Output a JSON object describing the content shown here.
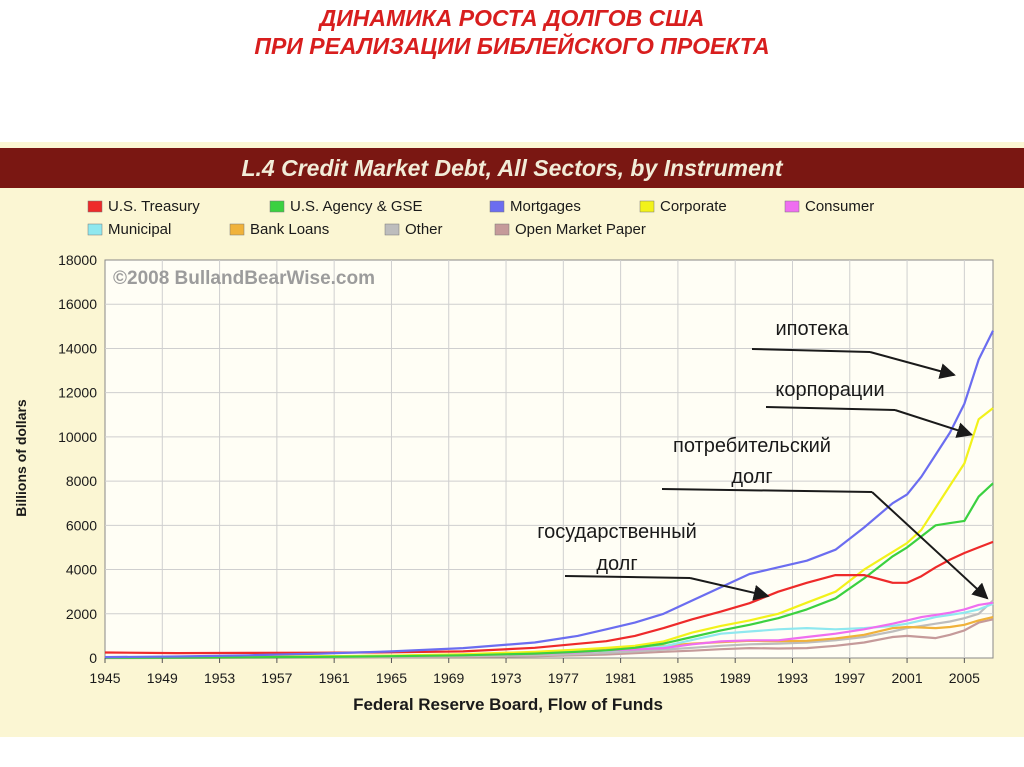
{
  "slide": {
    "title_line1": "ДИНАМИКА РОСТА ДОЛГОВ США",
    "title_line2": "ПРИ РЕАЛИЗАЦИИ БИБЛЕЙСКОГО ПРОЕКТА"
  },
  "chart_data": {
    "type": "line",
    "title": "L.4 Credit Market Debt, All Sectors, by Instrument",
    "watermark": "©2008 BullandBearWise.com",
    "ylabel": "Billions of dollars",
    "xlabel": "Federal Reserve Board, Flow of Funds",
    "ylim": [
      0,
      18000
    ],
    "xlim": [
      1945,
      2007
    ],
    "yticks": [
      0,
      2000,
      4000,
      6000,
      8000,
      10000,
      12000,
      14000,
      16000,
      18000
    ],
    "xticks": [
      "1945",
      "1949",
      "1953",
      "1957",
      "1961",
      "1965",
      "1969",
      "1973",
      "1977",
      "1981",
      "1985",
      "1989",
      "1993",
      "1997",
      "2001",
      "2005"
    ],
    "grid": true,
    "legend_position": "top",
    "colors": {
      "header_bg": "#7a1712",
      "header_text": "#f2ecd8",
      "chart_bg": "#fbf6d3",
      "plot_bg": "#fffef5",
      "grid": "#cfcfcf",
      "axis_text": "#1a1a1a",
      "annotation": "#1a1a1a"
    },
    "x": [
      1945,
      1950,
      1955,
      1960,
      1965,
      1970,
      1975,
      1978,
      1980,
      1982,
      1984,
      1986,
      1988,
      1990,
      1992,
      1994,
      1996,
      1998,
      2000,
      2001,
      2002,
      2003,
      2004,
      2005,
      2006,
      2007
    ],
    "series": [
      {
        "name": "U.S. Treasury",
        "color": "#ee2a2a",
        "values": [
          250,
          220,
          230,
          240,
          260,
          300,
          460,
          640,
          760,
          1000,
          1350,
          1750,
          2100,
          2480,
          3000,
          3400,
          3750,
          3750,
          3400,
          3400,
          3700,
          4100,
          4450,
          4750,
          5000,
          5250
        ]
      },
      {
        "name": "U.S. Agency & GSE",
        "color": "#3bd140",
        "values": [
          10,
          20,
          30,
          50,
          80,
          120,
          200,
          280,
          350,
          460,
          650,
          950,
          1250,
          1500,
          1800,
          2200,
          2700,
          3600,
          4600,
          5000,
          5500,
          6000,
          6100,
          6200,
          7300,
          7900
        ]
      },
      {
        "name": "Mortgages",
        "color": "#6b6df0",
        "values": [
          40,
          70,
          120,
          200,
          300,
          450,
          700,
          1000,
          1300,
          1600,
          2000,
          2600,
          3200,
          3800,
          4100,
          4400,
          4900,
          5900,
          7000,
          7400,
          8200,
          9200,
          10200,
          11500,
          13500,
          14800
        ]
      },
      {
        "name": "Corporate",
        "color": "#f2f21a",
        "values": [
          30,
          40,
          60,
          80,
          110,
          170,
          280,
          380,
          460,
          550,
          750,
          1150,
          1450,
          1700,
          2000,
          2500,
          3000,
          4000,
          4800,
          5200,
          5800,
          6800,
          7800,
          8800,
          10800,
          11300
        ]
      },
      {
        "name": "Consumer",
        "color": "#ef6ef0",
        "values": [
          5,
          20,
          40,
          60,
          90,
          130,
          190,
          260,
          350,
          390,
          450,
          620,
          750,
          800,
          800,
          950,
          1100,
          1300,
          1550,
          1700,
          1850,
          1950,
          2050,
          2200,
          2400,
          2500
        ]
      },
      {
        "name": "Municipal",
        "color": "#8fe8ef",
        "values": [
          15,
          25,
          40,
          70,
          100,
          140,
          220,
          280,
          330,
          400,
          520,
          820,
          1100,
          1200,
          1300,
          1350,
          1300,
          1350,
          1450,
          1550,
          1700,
          1850,
          1950,
          2050,
          2200,
          2450
        ]
      },
      {
        "name": "Bank Loans",
        "color": "#f0b23a",
        "values": [
          20,
          35,
          50,
          70,
          100,
          150,
          250,
          330,
          400,
          450,
          550,
          650,
          720,
          780,
          760,
          780,
          880,
          1050,
          1350,
          1400,
          1380,
          1350,
          1400,
          1500,
          1700,
          1850
        ]
      },
      {
        "name": "Other",
        "color": "#bdbdbd",
        "values": [
          10,
          20,
          30,
          40,
          60,
          80,
          120,
          180,
          230,
          300,
          380,
          460,
          550,
          620,
          650,
          700,
          800,
          950,
          1200,
          1350,
          1450,
          1550,
          1650,
          1800,
          2000,
          2600
        ]
      },
      {
        "name": "Open Market Paper",
        "color": "#c59a9a",
        "values": [
          0,
          5,
          10,
          20,
          30,
          50,
          80,
          120,
          160,
          220,
          280,
          330,
          400,
          450,
          430,
          450,
          550,
          700,
          950,
          1000,
          950,
          900,
          1050,
          1250,
          1600,
          1750
        ]
      }
    ],
    "annotations": [
      {
        "label": "ипотека",
        "target_x": 2004.3,
        "target_y": 12800
      },
      {
        "label": "корпорации",
        "target_x": 2005.5,
        "target_y": 10100
      },
      {
        "label": "потребительский",
        "label2": "долг",
        "target_x": 2006.6,
        "target_y": 2700
      },
      {
        "label": "государственный",
        "label2": "долг",
        "target_x": 1991.3,
        "target_y": 2800
      }
    ]
  }
}
